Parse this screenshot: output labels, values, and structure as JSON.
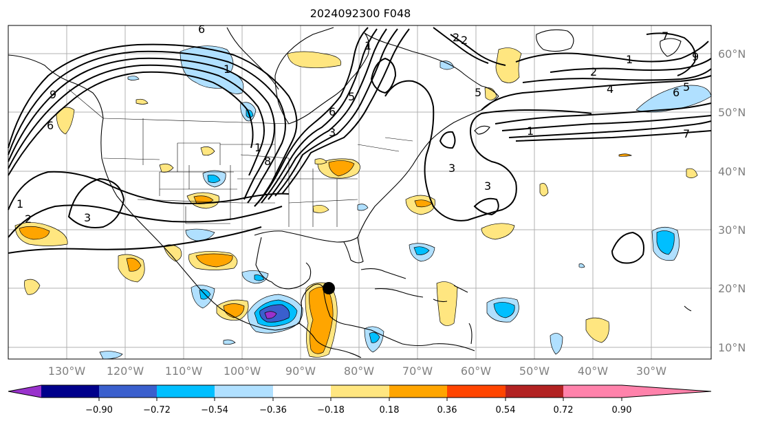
{
  "title": "2024092300 F048",
  "lat_labels": [
    "60°N",
    "50°N",
    "40°N",
    "30°N",
    "20°N",
    "10°N"
  ],
  "lon_labels": [
    "130°W",
    "120°W",
    "110°W",
    "100°W",
    "90°W",
    "80°W",
    "70°W",
    "60°W",
    "50°W",
    "40°W",
    "30°W"
  ],
  "colorbar": {
    "ticks": [
      "−0.90",
      "−0.72",
      "−0.54",
      "−0.36",
      "−0.18",
      "0.18",
      "0.36",
      "0.54",
      "0.72",
      "0.90"
    ],
    "colors": [
      "#9932cc",
      "#00008b",
      "#3a5fcd",
      "#00bfff",
      "#b0e0ff",
      "#ffffff",
      "#ffe680",
      "#ffa500",
      "#ff4500",
      "#b22222",
      "#ff82ab"
    ]
  },
  "contour_labels": [
    "6",
    "1",
    "6",
    "9",
    "8",
    "1",
    "6",
    "5",
    "2",
    "1",
    "3",
    "2",
    "1",
    "2",
    "3",
    "3",
    "3",
    "7",
    "2",
    "4",
    "6",
    "5",
    "1",
    "7",
    "9",
    "5",
    "1"
  ],
  "marker": "storm-center-dot",
  "colors": {
    "grid": "#b0b0b0",
    "contour": "#000000",
    "coast": "#000000"
  }
}
